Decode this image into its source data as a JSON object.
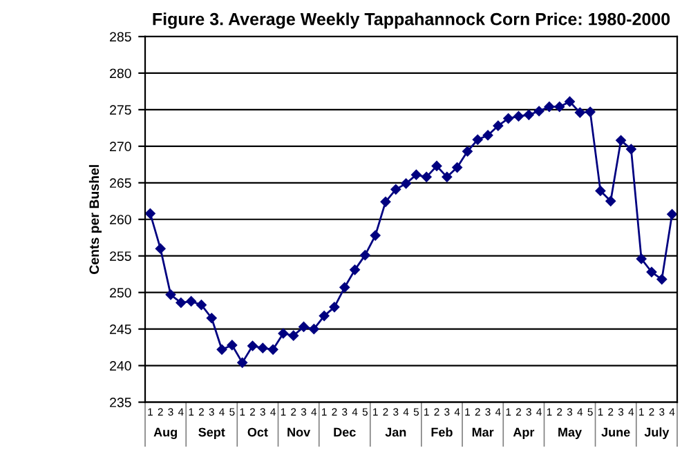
{
  "chart_data": {
    "type": "line",
    "title": "Figure 3. Average Weekly Tappahannock Corn Price: 1980-2000",
    "ylabel": "Cents per Bushel",
    "categories": [
      "1",
      "2",
      "3",
      "4",
      "1",
      "2",
      "3",
      "4",
      "5",
      "1",
      "2",
      "3",
      "4",
      "1",
      "2",
      "3",
      "4",
      "1",
      "2",
      "3",
      "4",
      "5",
      "1",
      "2",
      "3",
      "4",
      "5",
      "1",
      "2",
      "3",
      "4",
      "1",
      "2",
      "3",
      "4",
      "1",
      "2",
      "3",
      "4",
      "1",
      "2",
      "3",
      "4",
      "5",
      "1",
      "2",
      "3",
      "4",
      "1",
      "2",
      "3",
      "4"
    ],
    "annotations": [
      "Aug",
      "Sept",
      "Oct",
      "Nov",
      "Dec",
      "Jan",
      "Feb",
      "Mar",
      "Apr",
      "May",
      "June",
      "July"
    ],
    "series": [
      {
        "color": "#000080",
        "values": [
          260.8,
          256.0,
          249.7,
          248.6,
          248.8,
          248.3,
          246.5,
          242.2,
          242.8,
          240.4,
          242.7,
          242.4,
          242.2,
          244.4,
          244.1,
          245.3,
          245.0,
          246.8,
          248.0,
          250.7,
          253.1,
          255.1,
          257.8,
          262.4,
          264.1,
          264.9,
          266.1,
          265.8,
          267.3,
          265.8,
          267.1,
          269.3,
          270.9,
          271.5,
          272.8,
          273.8,
          274.1,
          274.3,
          274.8,
          275.4,
          275.4,
          276.1,
          274.6,
          274.7,
          263.9,
          262.5,
          270.8,
          269.6,
          254.6,
          252.8,
          251.8,
          260.7
        ]
      }
    ],
    "ylim": [
      235,
      285
    ],
    "yticks": [
      235,
      240,
      245,
      250,
      255,
      260,
      265,
      270,
      275,
      280,
      285
    ],
    "grid": "y",
    "marker": "diamond",
    "line_style": "solid",
    "legend": false
  }
}
